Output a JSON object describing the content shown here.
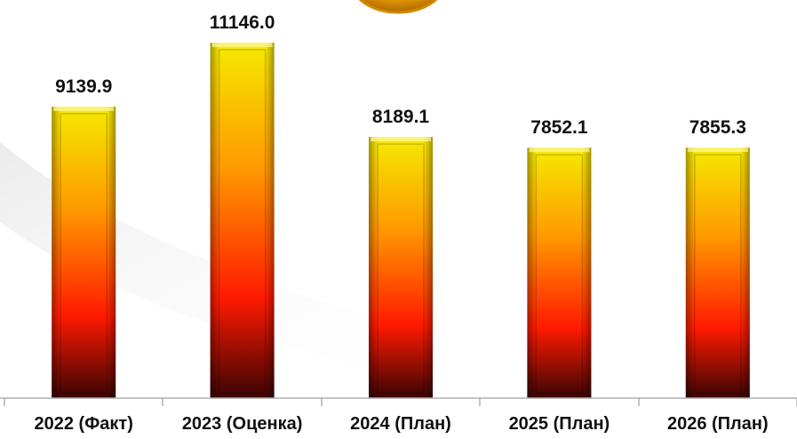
{
  "chart_data": {
    "type": "bar",
    "categories": [
      "2022 (Факт)",
      "2023 (Оценка)",
      "2024 (План)",
      "2025 (План)",
      "2026 (План)"
    ],
    "values": [
      9139.9,
      11146.0,
      8189.1,
      7852.1,
      7855.3
    ],
    "value_labels": [
      "9139.9",
      "11146.0",
      "8189.1",
      "7852.1",
      "7855.3"
    ],
    "title": "",
    "xlabel": "",
    "ylabel": "",
    "ylim": [
      0,
      12000
    ],
    "grid": false,
    "legend": "none",
    "colors": {
      "bar_top": "#f5ea00",
      "bar_mid": "#ff9a00",
      "bar_low": "#ff1a00",
      "bar_bottom": "#3a0404",
      "axis": "#b0b0b0",
      "emblem": "#f0a500"
    }
  }
}
